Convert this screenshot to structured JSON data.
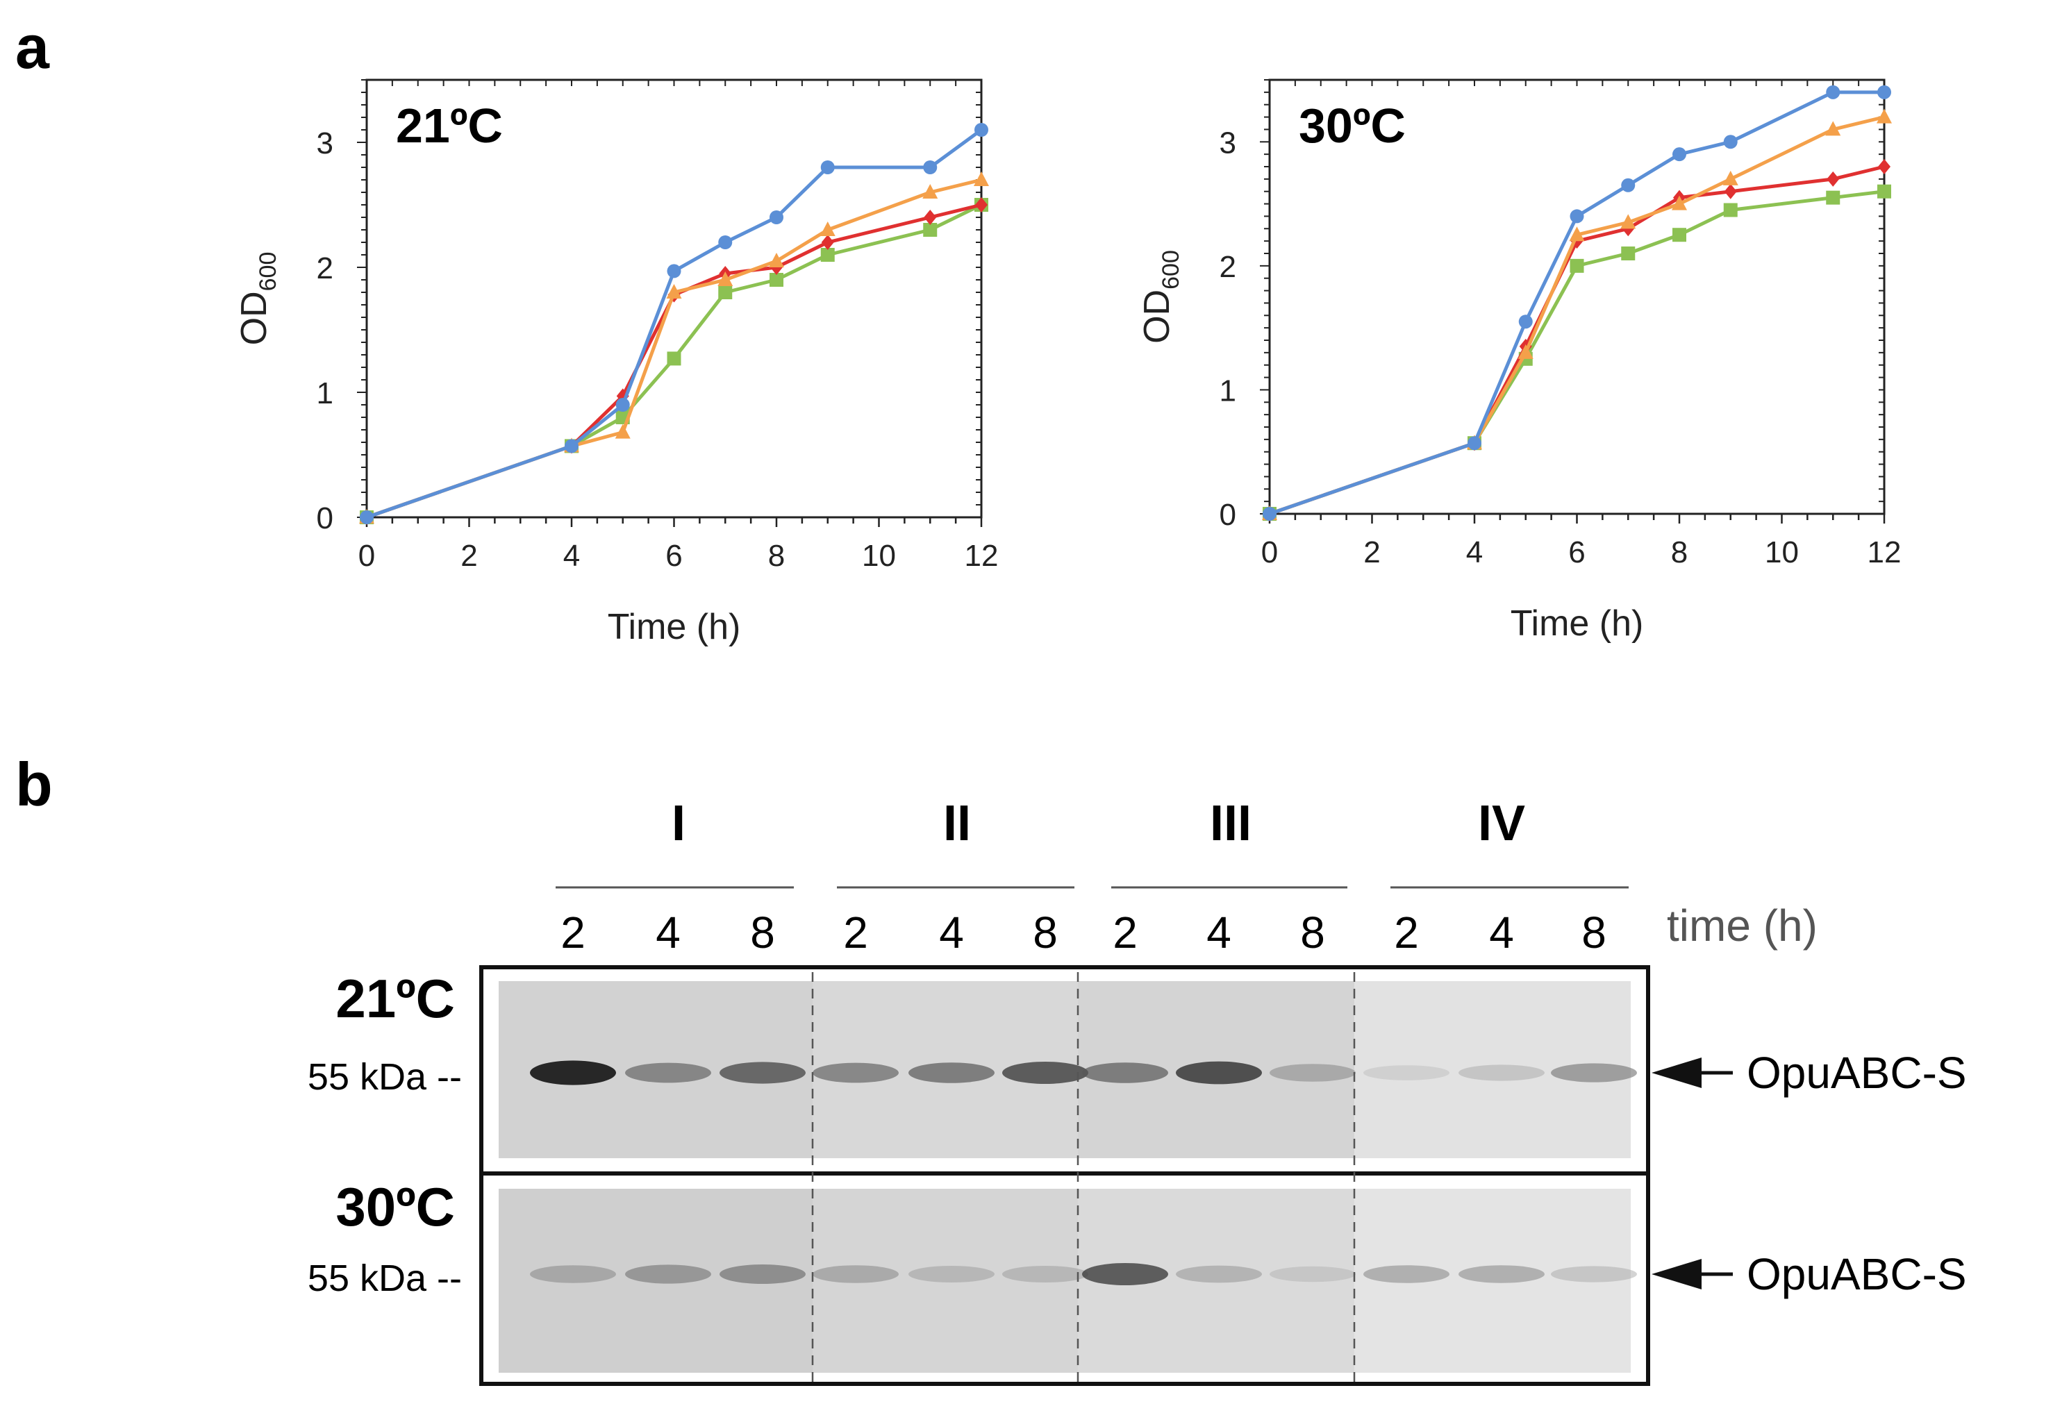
{
  "panel_a_label": "a",
  "panel_b_label": "b",
  "colors": {
    "blue": "#5b8fd6",
    "orange": "#f4a04a",
    "red": "#e03030",
    "green": "#8cc152",
    "axis": "#222222"
  },
  "chart_data": [
    {
      "type": "line",
      "title": "21ºC",
      "xlabel": "Time (h)",
      "ylabel_main": "OD",
      "ylabel_sub": "600",
      "xlim": [
        0,
        12
      ],
      "ylim": [
        0,
        3.5
      ],
      "xticks": [
        0,
        2,
        4,
        6,
        8,
        10,
        12
      ],
      "yticks": [
        0,
        1,
        2,
        3
      ],
      "series": [
        {
          "name": "series-green",
          "color": "#8cc152",
          "marker": "square",
          "x": [
            0,
            4,
            5,
            6,
            7,
            8,
            9,
            11,
            12
          ],
          "y": [
            0,
            0.57,
            0.8,
            1.27,
            1.8,
            1.9,
            2.1,
            2.3,
            2.5
          ]
        },
        {
          "name": "series-red",
          "color": "#e03030",
          "marker": "diamond",
          "x": [
            0,
            4,
            5,
            6,
            7,
            8,
            9,
            11,
            12
          ],
          "y": [
            0,
            0.57,
            0.97,
            1.78,
            1.95,
            2.0,
            2.2,
            2.4,
            2.5
          ]
        },
        {
          "name": "series-orange",
          "color": "#f4a04a",
          "marker": "triangle",
          "x": [
            0,
            4,
            5,
            6,
            7,
            8,
            9,
            11,
            12
          ],
          "y": [
            0,
            0.57,
            0.68,
            1.8,
            1.9,
            2.05,
            2.3,
            2.6,
            2.7
          ]
        },
        {
          "name": "series-blue",
          "color": "#5b8fd6",
          "marker": "circle",
          "x": [
            0,
            4,
            5,
            6,
            7,
            8,
            9,
            11,
            12
          ],
          "y": [
            0,
            0.57,
            0.9,
            1.97,
            2.2,
            2.4,
            2.8,
            2.8,
            3.1
          ]
        }
      ]
    },
    {
      "type": "line",
      "title": "30ºC",
      "xlabel": "Time (h)",
      "ylabel_main": "OD",
      "ylabel_sub": "600",
      "xlim": [
        0,
        12
      ],
      "ylim": [
        0,
        3.5
      ],
      "xticks": [
        0,
        2,
        4,
        6,
        8,
        10,
        12
      ],
      "yticks": [
        0,
        1,
        2,
        3
      ],
      "series": [
        {
          "name": "series-green",
          "color": "#8cc152",
          "marker": "square",
          "x": [
            0,
            4,
            5,
            6,
            7,
            8,
            9,
            11,
            12
          ],
          "y": [
            0,
            0.57,
            1.25,
            2.0,
            2.1,
            2.25,
            2.45,
            2.55,
            2.6
          ]
        },
        {
          "name": "series-red",
          "color": "#e03030",
          "marker": "diamond",
          "x": [
            0,
            4,
            5,
            6,
            7,
            8,
            9,
            11,
            12
          ],
          "y": [
            0,
            0.57,
            1.35,
            2.2,
            2.3,
            2.55,
            2.6,
            2.7,
            2.8
          ]
        },
        {
          "name": "series-orange",
          "color": "#f4a04a",
          "marker": "triangle",
          "x": [
            0,
            4,
            5,
            6,
            7,
            8,
            9,
            11,
            12
          ],
          "y": [
            0,
            0.57,
            1.3,
            2.25,
            2.35,
            2.5,
            2.7,
            3.1,
            3.2
          ]
        },
        {
          "name": "series-blue",
          "color": "#5b8fd6",
          "marker": "circle",
          "x": [
            0,
            4,
            5,
            6,
            7,
            8,
            9,
            11,
            12
          ],
          "y": [
            0,
            0.57,
            1.55,
            2.4,
            2.65,
            2.9,
            3.0,
            3.4,
            3.4
          ]
        }
      ]
    }
  ],
  "blot": {
    "groups": [
      "I",
      "II",
      "III",
      "IV"
    ],
    "time_ticks": [
      "2",
      "4",
      "8"
    ],
    "time_unit": "time (h)",
    "marker": "55 kDa --",
    "protein": "OpuABC-S",
    "rows": [
      {
        "temp": "21ºC",
        "band_intensities": [
          0.95,
          0.55,
          0.7,
          0.55,
          0.6,
          0.75,
          0.6,
          0.8,
          0.35,
          0.1,
          0.2,
          0.45
        ]
      },
      {
        "temp": "30ºC",
        "band_intensities": [
          0.35,
          0.45,
          0.5,
          0.35,
          0.25,
          0.25,
          0.75,
          0.3,
          0.15,
          0.35,
          0.35,
          0.2
        ]
      }
    ]
  }
}
